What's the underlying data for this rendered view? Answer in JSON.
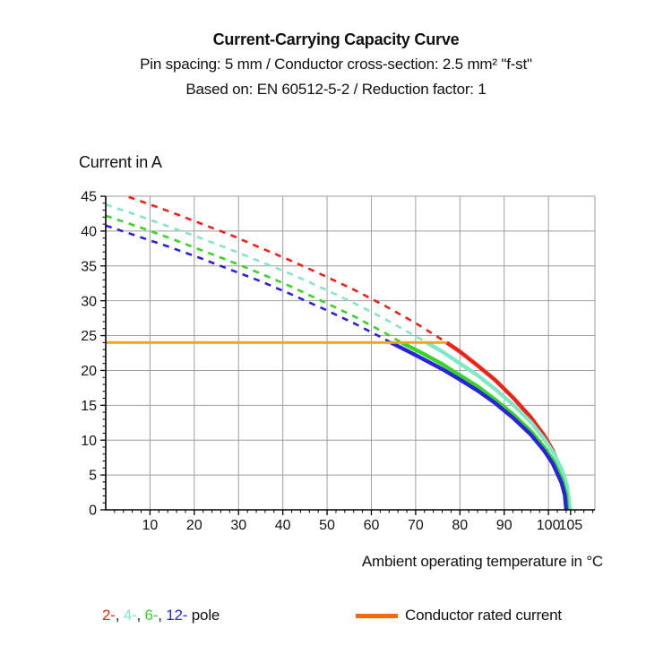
{
  "chart_data": {
    "type": "line",
    "title": "Current-Carrying Capacity Curve",
    "subtitle1": "Pin spacing: 5 mm / Conductor cross-section: 2.5 mm² \"f-st\"",
    "subtitle2": "Based on: EN 60512-5-2 / Reduction factor: 1",
    "ylabel": "Current in A",
    "xlabel": "Ambient operating temperature in °C",
    "xlim": [
      0,
      110.5
    ],
    "ylim": [
      0,
      45
    ],
    "x_ticks": [
      10,
      20,
      30,
      40,
      50,
      60,
      70,
      80,
      90,
      100,
      105
    ],
    "y_ticks": [
      0,
      5,
      10,
      15,
      20,
      25,
      30,
      35,
      40,
      45
    ],
    "grid": true,
    "grid_color": "#9e9e9e",
    "axis_color": "#000000",
    "series": [
      {
        "name": "2-pole",
        "legend_label": "2-",
        "color": "#ee2219",
        "dashed": [
          [
            0,
            46.0
          ],
          [
            7,
            44.5
          ],
          [
            14,
            42.9
          ],
          [
            21,
            41.2
          ],
          [
            28,
            39.5
          ],
          [
            35,
            37.6
          ],
          [
            42,
            35.7
          ],
          [
            49,
            33.7
          ],
          [
            56,
            31.6
          ],
          [
            63,
            29.3
          ],
          [
            70,
            26.8
          ],
          [
            77,
            24
          ]
        ],
        "solid": [
          [
            77,
            24
          ],
          [
            80,
            22.7
          ],
          [
            84,
            20.7
          ],
          [
            88,
            18.6
          ],
          [
            92,
            16.1
          ],
          [
            96,
            13.3
          ],
          [
            99,
            10.7
          ],
          [
            101,
            8.5
          ],
          [
            103,
            5.4
          ],
          [
            104,
            2.9
          ],
          [
            104.4,
            0
          ]
        ]
      },
      {
        "name": "4-pole",
        "legend_label": "4-",
        "color": "#7ee9c6",
        "dashed": [
          [
            0,
            43.8
          ],
          [
            7,
            42.3
          ],
          [
            14,
            40.7
          ],
          [
            21,
            39.1
          ],
          [
            28,
            37.4
          ],
          [
            35,
            35.6
          ],
          [
            42,
            33.8
          ],
          [
            49,
            31.8
          ],
          [
            56,
            29.7
          ],
          [
            63,
            27.4
          ],
          [
            70,
            24.9
          ],
          [
            72.5,
            24
          ]
        ],
        "solid": [
          [
            72.5,
            24
          ],
          [
            76,
            22.7
          ],
          [
            80,
            21.0
          ],
          [
            84,
            19.3
          ],
          [
            88,
            17.3
          ],
          [
            92,
            15.1
          ],
          [
            96,
            12.6
          ],
          [
            99,
            10.2
          ],
          [
            101,
            8.3
          ],
          [
            103,
            5.8
          ],
          [
            104.2,
            3.5
          ],
          [
            104.9,
            0
          ]
        ]
      },
      {
        "name": "6-pole",
        "legend_label": "6-",
        "color": "#36d626",
        "dashed": [
          [
            0,
            42.2
          ],
          [
            7,
            40.7
          ],
          [
            14,
            39.1
          ],
          [
            21,
            37.4
          ],
          [
            28,
            35.7
          ],
          [
            35,
            33.9
          ],
          [
            42,
            32.0
          ],
          [
            49,
            29.9
          ],
          [
            56,
            27.8
          ],
          [
            63,
            25.4
          ],
          [
            66.8,
            24
          ]
        ],
        "solid": [
          [
            66.8,
            24
          ],
          [
            72,
            22.3
          ],
          [
            76,
            20.9
          ],
          [
            80,
            19.3
          ],
          [
            84,
            17.7
          ],
          [
            88,
            15.8
          ],
          [
            92,
            13.7
          ],
          [
            96,
            11.3
          ],
          [
            99,
            9.0
          ],
          [
            101,
            7.1
          ],
          [
            103,
            4.5
          ],
          [
            104,
            2.2
          ],
          [
            104.3,
            0
          ]
        ]
      },
      {
        "name": "12-pole",
        "legend_label": "12-",
        "color": "#2b22dd",
        "dashed": [
          [
            0,
            40.8
          ],
          [
            7,
            39.3
          ],
          [
            14,
            37.8
          ],
          [
            21,
            36.2
          ],
          [
            28,
            34.5
          ],
          [
            35,
            32.8
          ],
          [
            42,
            30.9
          ],
          [
            49,
            28.9
          ],
          [
            56,
            26.8
          ],
          [
            63,
            24.5
          ],
          [
            64.4,
            24
          ]
        ],
        "solid": [
          [
            64.4,
            24
          ],
          [
            70,
            22.2
          ],
          [
            76,
            20.2
          ],
          [
            80,
            18.7
          ],
          [
            84,
            17.1
          ],
          [
            88,
            15.3
          ],
          [
            92,
            13.2
          ],
          [
            96,
            10.8
          ],
          [
            99,
            8.5
          ],
          [
            101,
            6.6
          ],
          [
            103,
            3.8
          ],
          [
            103.7,
            2.1
          ],
          [
            104,
            0
          ]
        ]
      }
    ],
    "rated_current": {
      "value": 24,
      "t_start": 0,
      "t_end": 77,
      "color": "#f6a01e"
    },
    "legend": {
      "separator": ", ",
      "suffix": " pole",
      "poles": [
        {
          "label": "2-",
          "color": "#ee2219"
        },
        {
          "label": "4-",
          "color": "#7ee9c6"
        },
        {
          "label": "6-",
          "color": "#36d626"
        },
        {
          "label": "12-",
          "color": "#2b22dd"
        }
      ],
      "rated": {
        "label": "Conductor rated current",
        "swatch_color": "#f2690e"
      }
    }
  }
}
